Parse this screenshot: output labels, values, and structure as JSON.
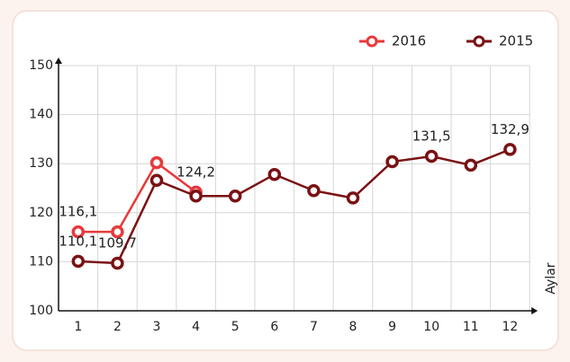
{
  "chart_data": {
    "type": "line",
    "xlabel": "Aylar",
    "categories": [
      "1",
      "2",
      "3",
      "4",
      "5",
      "6",
      "7",
      "8",
      "9",
      "10",
      "11",
      "12"
    ],
    "series": [
      {
        "name": "2016",
        "color": "#e8393a",
        "values": [
          116.1,
          116.1,
          130.2,
          124.2,
          null,
          null,
          null,
          null,
          null,
          null,
          null,
          null
        ],
        "value_labels": [
          "116,1",
          null,
          null,
          "124,2",
          null,
          null,
          null,
          null,
          null,
          null,
          null,
          null
        ]
      },
      {
        "name": "2015",
        "color": "#7a1113",
        "values": [
          110.1,
          109.7,
          126.6,
          123.4,
          123.4,
          127.8,
          124.5,
          123.0,
          130.4,
          131.5,
          129.7,
          132.9
        ],
        "value_labels": [
          "110,1",
          "109,7",
          null,
          null,
          null,
          null,
          null,
          null,
          null,
          "131,5",
          null,
          "132,9"
        ]
      }
    ],
    "ylim": [
      100,
      150
    ],
    "yticks": [
      100,
      110,
      120,
      130,
      140,
      150
    ],
    "grid": true,
    "legend": "top-right"
  }
}
